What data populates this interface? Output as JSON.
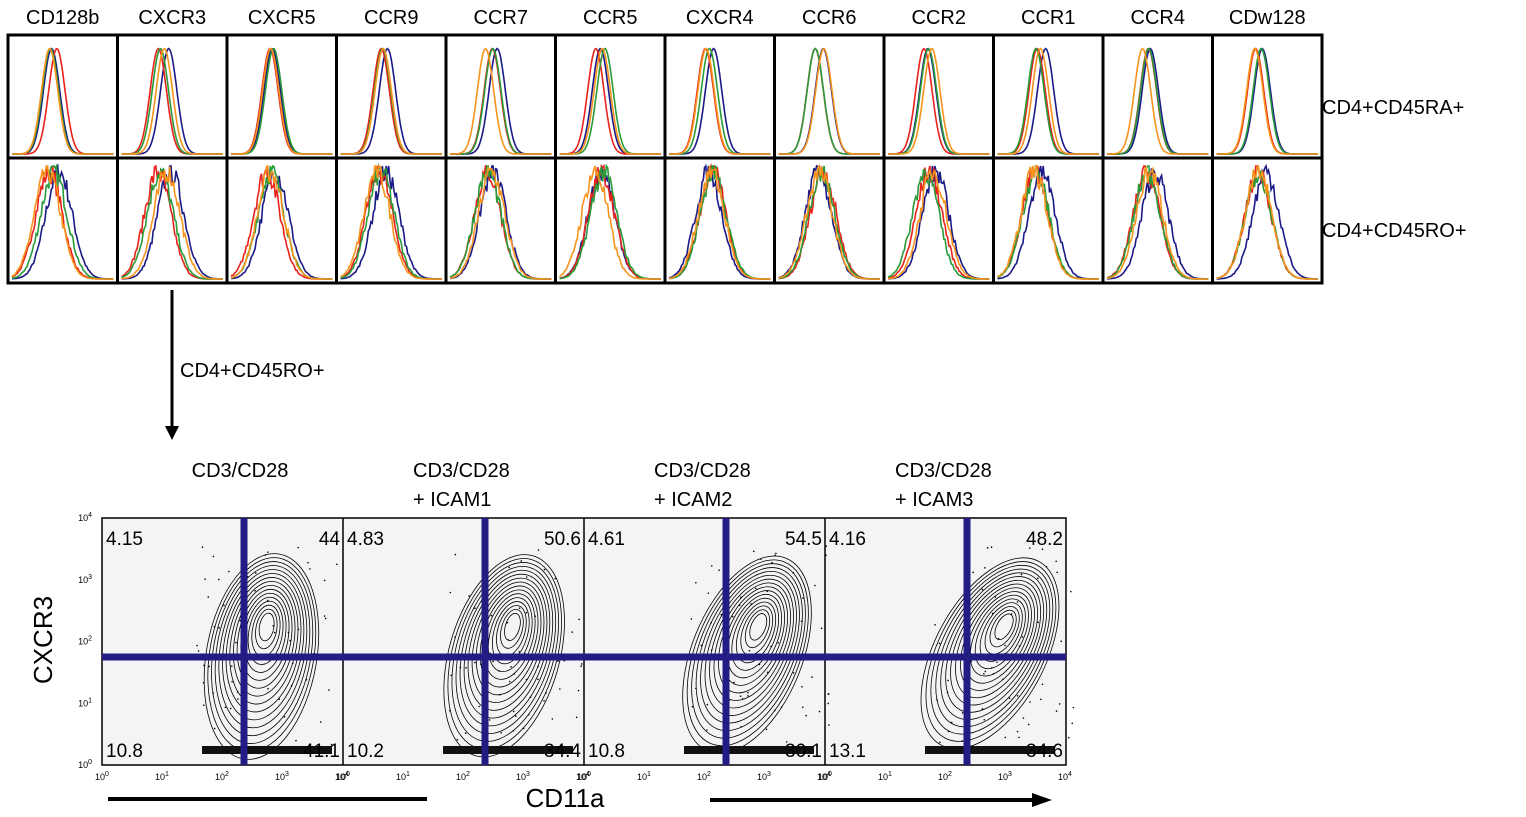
{
  "histogram_grid": {
    "columns": [
      "CD128b",
      "CXCR3",
      "CXCR5",
      "CCR9",
      "CCR7",
      "CCR5",
      "CXCR4",
      "CCR6",
      "CCR2",
      "CCR1",
      "CCR4",
      "CDw128"
    ],
    "rows": [
      "CD4+CD45RA+",
      "CD4+CD45RO+"
    ]
  },
  "arrow_label": "CD4+CD45RO+",
  "contour_panels": [
    {
      "title": [
        "CD3/CD28"
      ],
      "quadrants": {
        "upper_left": "4.15",
        "upper_right": "44",
        "lower_left": "10.8",
        "lower_right": "41.1"
      }
    },
    {
      "title": [
        "CD3/CD28",
        "+ ICAM1"
      ],
      "quadrants": {
        "upper_left": "4.83",
        "upper_right": "50.6",
        "lower_left": "10.2",
        "lower_right": "34.4"
      }
    },
    {
      "title": [
        "CD3/CD28",
        "+ ICAM2"
      ],
      "quadrants": {
        "upper_left": "4.61",
        "upper_right": "54.5",
        "lower_left": "10.8",
        "lower_right": "30.1"
      }
    },
    {
      "title": [
        "CD3/CD28",
        "+ ICAM3"
      ],
      "quadrants": {
        "upper_left": "4.16",
        "upper_right": "48.2",
        "lower_left": "13.1",
        "lower_right": "34.6"
      }
    }
  ],
  "y_axis": {
    "label": "CXCR3",
    "tick_base": "10",
    "tick_exponents": [
      "0",
      "1",
      "2",
      "3",
      "4"
    ]
  },
  "x_axis": {
    "label": "CD11a",
    "tick_base": "10",
    "tick_exponents": [
      "0",
      "1",
      "2",
      "3",
      "4"
    ]
  }
}
